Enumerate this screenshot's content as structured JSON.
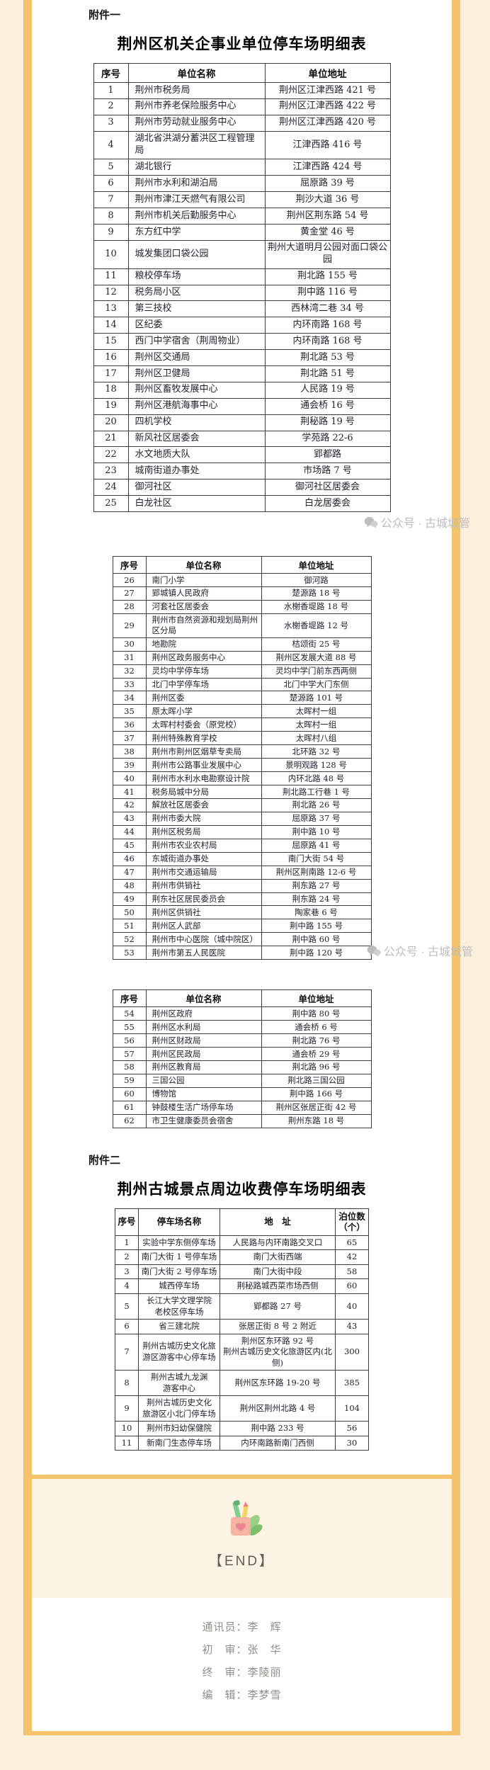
{
  "doc": {
    "attachment1_label": "附件一",
    "table1_title": "荆州区机关企事业单位停车场明细表",
    "attachment2_label": "附件二",
    "table4_title": "荆州古城景点周边收费停车场明细表",
    "watermark": "公众号 · 古城城管",
    "end_label": "【END】"
  },
  "tables": {
    "unit_headers": [
      "序号",
      "单位名称",
      "单位地址"
    ],
    "parking_headers": [
      "序号",
      "停车场名称",
      "地　址",
      "泊位数（个）"
    ],
    "t1_rows": [
      [
        "1",
        "荆州市税务局",
        "荆州区江津西路 421 号"
      ],
      [
        "2",
        "荆州市养老保险服务中心",
        "荆州区江津西路 422 号"
      ],
      [
        "3",
        "荆州市劳动就业服务中心",
        "荆州区江津西路 420 号"
      ],
      [
        "4",
        "湖北省洪湖分蓄洪区工程管理局",
        "江津西路 416 号"
      ],
      [
        "5",
        "湖北银行",
        "江津西路 424 号"
      ],
      [
        "6",
        "荆州市水利和湖泊局",
        "屈原路 39 号"
      ],
      [
        "7",
        "荆州市津江天燃气有限公司",
        "荆沙大道 36 号"
      ],
      [
        "8",
        "荆州市机关后勤服务中心",
        "荆州区荆东路 54 号"
      ],
      [
        "9",
        "东方红中学",
        "黄金堂 46 号"
      ],
      [
        "10",
        "城发集团口袋公园",
        "荆州大道明月公园对面口袋公园"
      ],
      [
        "11",
        "粮校停车场",
        "荆北路 155 号"
      ],
      [
        "12",
        "税务局小区",
        "荆中路 116 号"
      ],
      [
        "13",
        "第三技校",
        "西林湾二巷 34 号"
      ],
      [
        "14",
        "区纪委",
        "内环南路 168 号"
      ],
      [
        "15",
        "西门中学宿舍（荆周物业）",
        "内环南路 168 号"
      ],
      [
        "16",
        "荆州区交通局",
        "荆北路 53 号"
      ],
      [
        "17",
        "荆州区卫健局",
        "荆北路 51 号"
      ],
      [
        "18",
        "荆州区畜牧发展中心",
        "人民路 19 号"
      ],
      [
        "19",
        "荆州区港航海事中心",
        "通会桥 16 号"
      ],
      [
        "20",
        "四机学校",
        "荆秘路 19 号"
      ],
      [
        "21",
        "新风社区居委会",
        "学苑路 22-6"
      ],
      [
        "22",
        "水文地质大队",
        "郢都路"
      ],
      [
        "23",
        "城南街道办事处",
        "市场路 7 号"
      ],
      [
        "24",
        "御河社区",
        "御河社区居委会"
      ],
      [
        "25",
        "白龙社区",
        "白龙居委会"
      ]
    ],
    "t2_rows": [
      [
        "26",
        "南门小学",
        "御河路"
      ],
      [
        "27",
        "郢城镇人民政府",
        "楚源路 18 号"
      ],
      [
        "28",
        "河套社区居委会",
        "水榭香堤路 18 号"
      ],
      [
        "29",
        "荆州市自然资源和规划局荆州区分局",
        "水榭香堤路 12 号"
      ],
      [
        "30",
        "地勘院",
        "桔颂街 25 号"
      ],
      [
        "31",
        "荆州区政务服务中心",
        "荆州区发展大道 88 号"
      ],
      [
        "32",
        "灵均中学停车场",
        "灵均中学门前东西两侧"
      ],
      [
        "33",
        "北门中学停车场",
        "北门中学大门东侧"
      ],
      [
        "34",
        "荆州区委",
        "楚源路 101 号"
      ],
      [
        "35",
        "原太晖小学",
        "太晖村一组"
      ],
      [
        "36",
        "太晖村村委会（原党校）",
        "太晖村一组"
      ],
      [
        "37",
        "荆州特殊教育学校",
        "太晖村八组"
      ],
      [
        "38",
        "荆州市荆州区烟草专卖局",
        "北环路 32 号"
      ],
      [
        "39",
        "荆州市公路事业发展中心",
        "景明观路 128 号"
      ],
      [
        "40",
        "荆州市水利水电勘察设计院",
        "内环北路 48 号"
      ],
      [
        "41",
        "税务局城中分局",
        "荆北路工行巷 1 号"
      ],
      [
        "42",
        "解放社区居委会",
        "荆北路 26 号"
      ],
      [
        "43",
        "荆州市委大院",
        "屈原路 37 号"
      ],
      [
        "44",
        "荆州区税务局",
        "荆中路 10 号"
      ],
      [
        "45",
        "荆州市农业农村局",
        "屈原路 41 号"
      ],
      [
        "46",
        "东城街道办事处",
        "南门大街 54 号"
      ],
      [
        "47",
        "荆州市交通运输局",
        "荆州区荆南路 12-6 号"
      ],
      [
        "48",
        "荆州市供销社",
        "荆东路 27 号"
      ],
      [
        "49",
        "荆东社区居民委员会",
        "荆东路 24 号"
      ],
      [
        "50",
        "荆州区供销社",
        "陶家巷 6 号"
      ],
      [
        "51",
        "荆州区人武部",
        "荆中路 155 号"
      ],
      [
        "52",
        "荆州市中心医院（城中院区）",
        "荆中路 60 号"
      ],
      [
        "53",
        "荆州市第五人民医院",
        "荆中路 120 号"
      ]
    ],
    "t3_rows": [
      [
        "54",
        "荆州区政府",
        "荆中路 80 号"
      ],
      [
        "55",
        "荆州区水利局",
        "通会桥 6 号"
      ],
      [
        "56",
        "荆州区财政局",
        "荆北路 76 号"
      ],
      [
        "57",
        "荆州区民政局",
        "通会桥 29 号"
      ],
      [
        "58",
        "荆州区教育局",
        "荆北路 96 号"
      ],
      [
        "59",
        "三国公园",
        "荆北路三国公园"
      ],
      [
        "60",
        "博物馆",
        "荆中路 166 号"
      ],
      [
        "61",
        "钟鼓楼生活广场停车场",
        "荆州区张居正街 42 号"
      ],
      [
        "62",
        "市卫生健康委员会宿舍",
        "荆州东路 18 号"
      ]
    ],
    "t4_rows": [
      [
        "1",
        "实验中学东侧停车场",
        "人民路与内环南路交叉口",
        "65"
      ],
      [
        "2",
        "南门大街 1 号停车场",
        "南门大街西端",
        "42"
      ],
      [
        "3",
        "南门大街 2 号停车场",
        "南门大街中段",
        "58"
      ],
      [
        "4",
        "城西停车场",
        "荆秘路城西菜市场西侧",
        "60"
      ],
      [
        "5",
        "长江大学文理学院\n老校区停车场",
        "郢都路 27 号",
        "40"
      ],
      [
        "6",
        "省三建北院",
        "张居正街 8 号 2 附近",
        "43"
      ],
      [
        "7",
        "荆州古城历史文化旅\n游区游客中心停车场",
        "荆州区东环路 92 号\n荆州古城历史文化旅游区内(北侧)",
        "300"
      ],
      [
        "8",
        "荆州古城九龙渊\n游客中心",
        "荆州区东环路 19-20 号",
        "385"
      ],
      [
        "9",
        "荆州古城历史文化\n旅游区小北门停车场",
        "荆州区荆州北路 4 号",
        "104"
      ],
      [
        "10",
        "荆州市妇幼保健院",
        "荆中路 233 号",
        "56"
      ],
      [
        "11",
        "新南门生态停车场",
        "内环南路新南门西侧",
        "30"
      ]
    ]
  },
  "footer": {
    "credits": [
      "通讯员：李　辉",
      "初　审：张　华",
      "终　审：李陵丽",
      "编　辑：李梦雪"
    ]
  },
  "colors": {
    "accent_bar": "#f5c36b",
    "page_cream": "#fcefdb",
    "end_cream": "#fdf3e4",
    "watermark_gray": "#bdbdbd"
  }
}
